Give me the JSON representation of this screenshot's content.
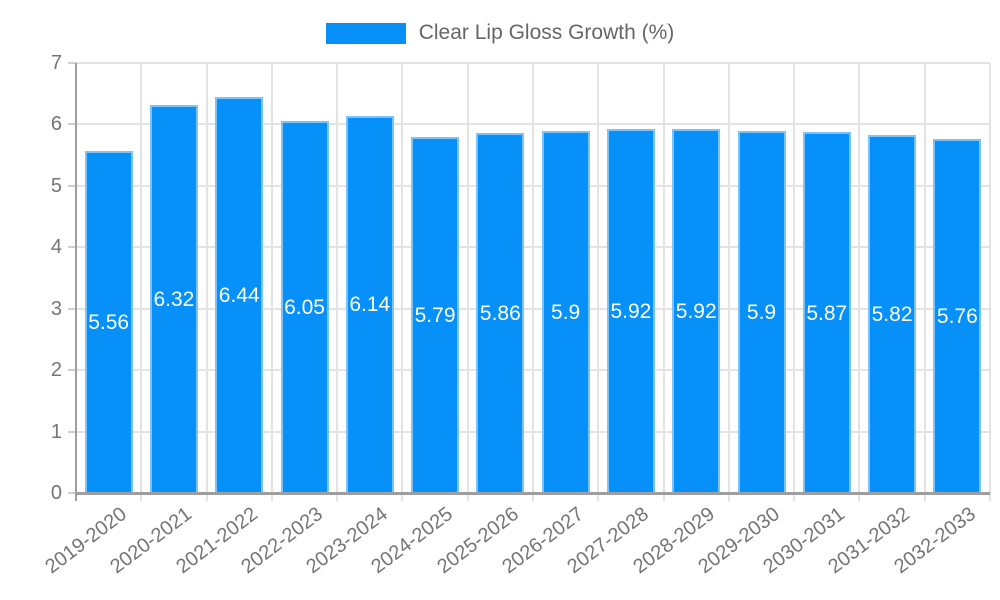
{
  "colors": {
    "bar": "#0690f8",
    "bar_border": "#7cc2fb",
    "grid": "#e3e3e3",
    "axis": "#9e9e9e",
    "tick": "#cfcfcf",
    "tick_text": "#757575",
    "legend_text": "#666666",
    "value_label": "#ffffff",
    "background": "#ffffff"
  },
  "chart_data": {
    "type": "bar",
    "categories": [
      "2019-2020",
      "2020-2021",
      "2021-2022",
      "2022-2023",
      "2023-2024",
      "2024-2025",
      "2025-2026",
      "2026-2027",
      "2027-2028",
      "2028-2029",
      "2029-2030",
      "2030-2031",
      "2031-2032",
      "2032-2033"
    ],
    "series": [
      {
        "name": "Clear Lip Gloss Growth (%)",
        "values": [
          5.56,
          6.32,
          6.44,
          6.05,
          6.14,
          5.79,
          5.86,
          5.9,
          5.92,
          5.92,
          5.9,
          5.87,
          5.82,
          5.76
        ]
      }
    ],
    "ylim": [
      0,
      7
    ],
    "yticks": [
      0,
      1,
      2,
      3,
      4,
      5,
      6,
      7
    ],
    "xlabel": "",
    "ylabel": "",
    "grid": true,
    "legend_position": "top",
    "bar_value_labels": "centered-white"
  }
}
